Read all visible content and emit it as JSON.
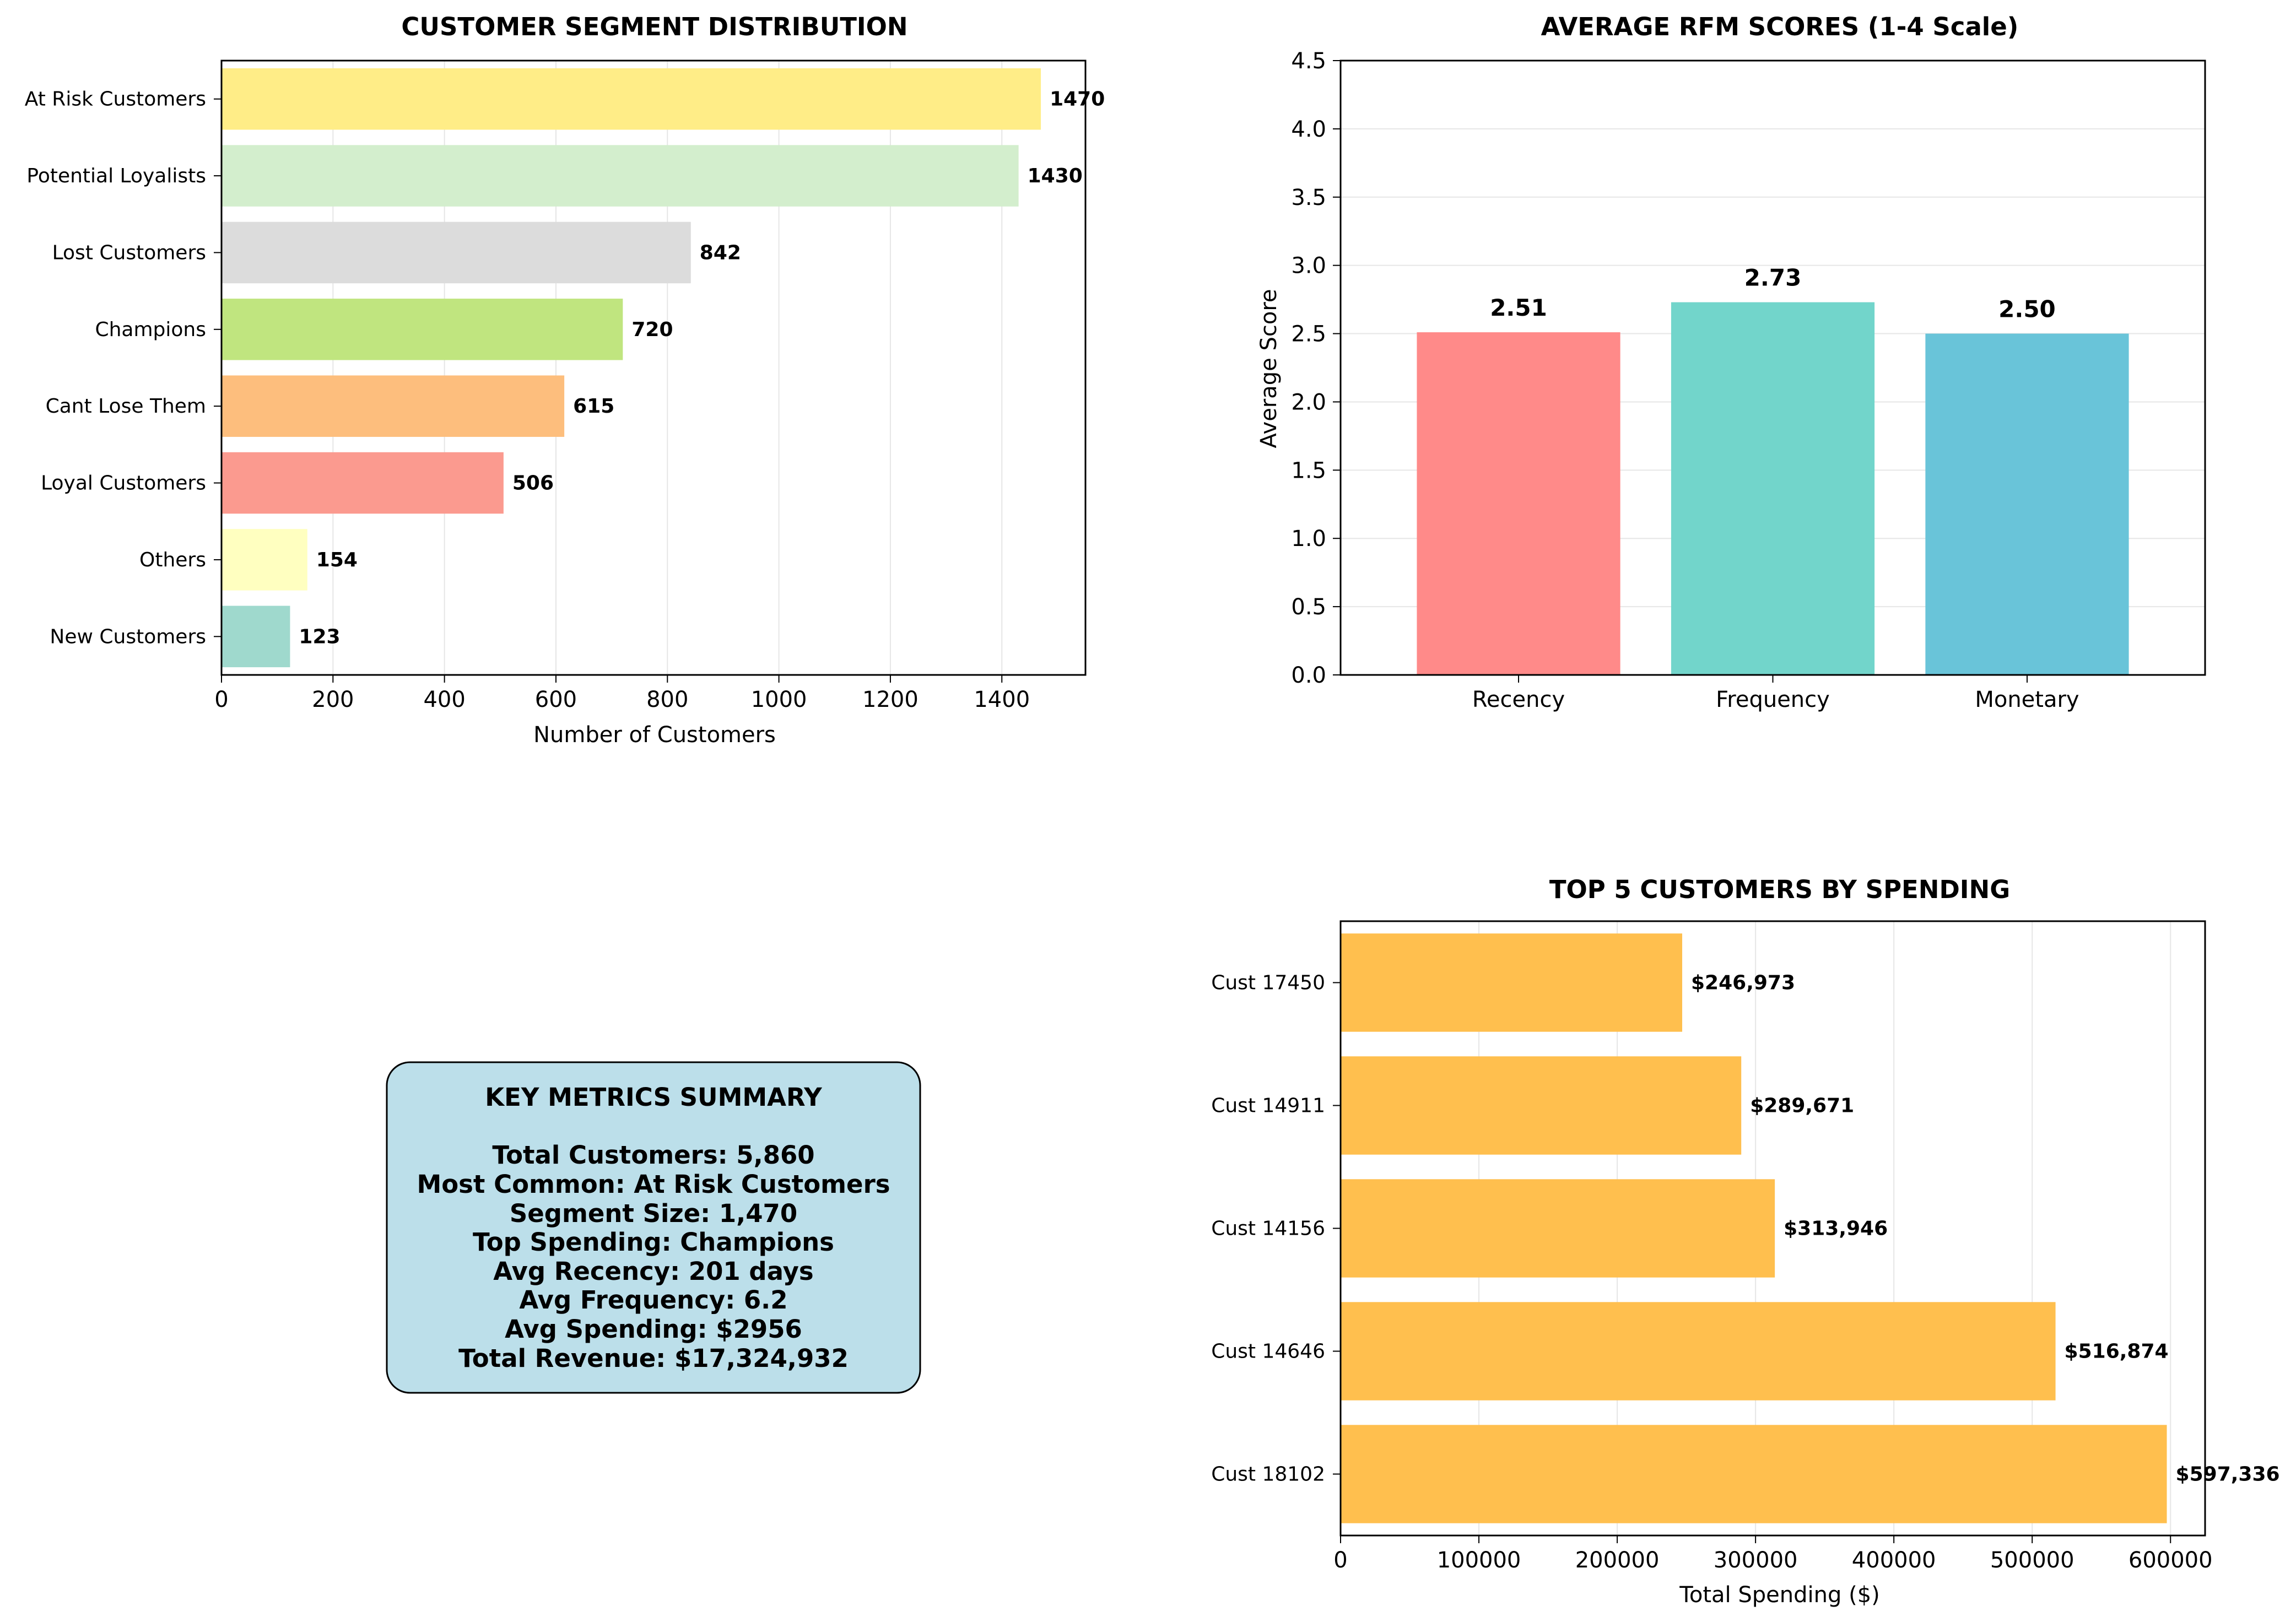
{
  "chart_data": [
    {
      "id": "segments",
      "type": "bar",
      "orientation": "horizontal",
      "title": "CUSTOMER SEGMENT DISTRIBUTION",
      "xlabel": "Number of Customers",
      "ylabel": "",
      "xlim": [
        0,
        1550
      ],
      "xticks": [
        0,
        200,
        400,
        600,
        800,
        1000,
        1200,
        1400
      ],
      "grid": "x",
      "categories": [
        "At Risk Customers",
        "Potential Loyalists",
        "Lost Customers",
        "Champions",
        "Cant Lose Them",
        "Loyal Customers",
        "Others",
        "New Customers"
      ],
      "values": [
        1470,
        1430,
        842,
        720,
        615,
        506,
        154,
        123
      ],
      "labels": [
        "1470",
        "1430",
        "842",
        "720",
        "615",
        "506",
        "154",
        "123"
      ],
      "colors": [
        "#ffed87",
        "#d3eecd",
        "#dcdcdc",
        "#c0e57f",
        "#fdbe7d",
        "#fb9a8f",
        "#ffffc0",
        "#9fd9cd"
      ]
    },
    {
      "id": "rfm",
      "type": "bar",
      "title": "AVERAGE RFM SCORES (1-4 Scale)",
      "xlabel": "",
      "ylabel": "Average Score",
      "ylim": [
        0,
        4.5
      ],
      "yticks": [
        "0.0",
        "0.5",
        "1.0",
        "1.5",
        "2.0",
        "2.5",
        "3.0",
        "3.5",
        "4.0",
        "4.5"
      ],
      "grid": "y",
      "categories": [
        "Recency",
        "Frequency",
        "Monetary"
      ],
      "values": [
        2.51,
        2.73,
        2.5
      ],
      "labels": [
        "2.51",
        "2.73",
        "2.50"
      ],
      "colors": [
        "#ff8a89",
        "#72d5cb",
        "#69c4d9"
      ]
    },
    {
      "id": "top5",
      "type": "bar",
      "orientation": "horizontal",
      "title": "TOP 5 CUSTOMERS BY SPENDING",
      "xlabel": "Total Spending ($)",
      "ylabel": "",
      "xlim": [
        0,
        625000
      ],
      "xticks": [
        "0",
        "100000",
        "200000",
        "300000",
        "400000",
        "500000",
        "600000"
      ],
      "grid": "x",
      "categories": [
        "Cust 17450",
        "Cust 14911",
        "Cust 14156",
        "Cust 14646",
        "Cust 18102"
      ],
      "values": [
        246973,
        289671,
        313946,
        516874,
        597336
      ],
      "labels": [
        "$246,973",
        "$289,671",
        "$313,946",
        "$516,874",
        "$597,336"
      ],
      "color": "#ffbf4e"
    }
  ],
  "summary": {
    "title": "KEY METRICS SUMMARY",
    "lines": [
      "Total Customers: 5,860",
      "Most Common: At Risk Customers",
      "Segment Size: 1,470",
      "Top Spending: Champions",
      "Avg Recency: 201 days",
      "Avg Frequency: 6.2",
      "Avg Spending: $2956",
      "Total Revenue: $17,324,932"
    ],
    "box_color": "#bcdfea"
  }
}
